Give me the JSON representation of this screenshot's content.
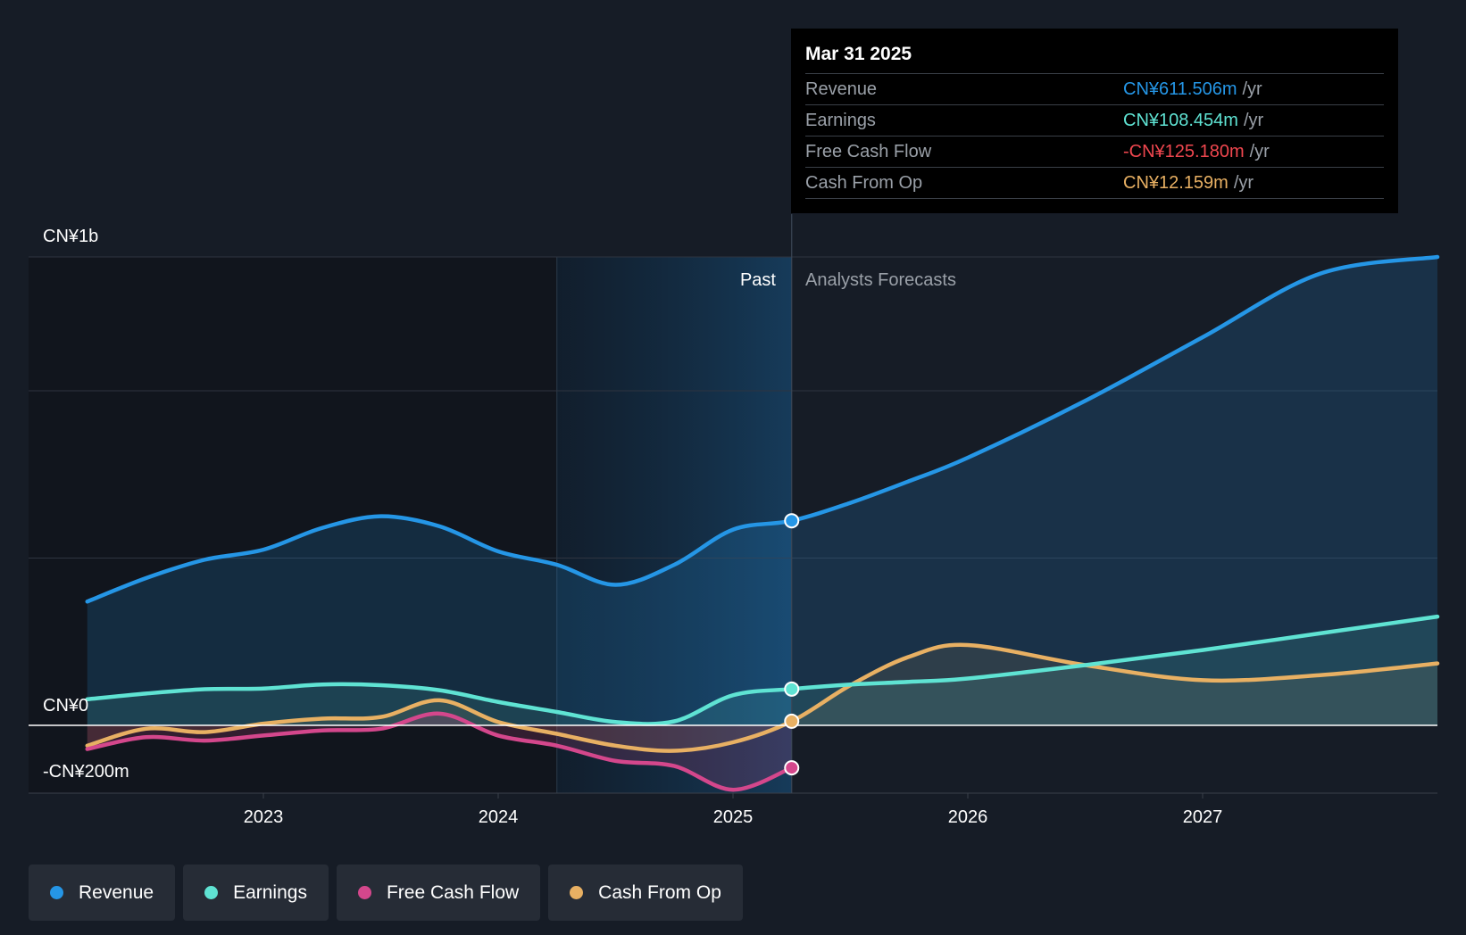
{
  "colors": {
    "revenue": "#2596e6",
    "earnings": "#5fe3d3",
    "free_cash_flow": "#d4478c",
    "cash_from_op": "#e8b063",
    "negative": "#f0474f"
  },
  "tooltip": {
    "date": "Mar 31 2025",
    "rows": [
      {
        "label": "Revenue",
        "value": "CN¥611.506m",
        "unit": "/yr"
      },
      {
        "label": "Earnings",
        "value": "CN¥108.454m",
        "unit": "/yr"
      },
      {
        "label": "Free Cash Flow",
        "value": "-CN¥125.180m",
        "unit": "/yr"
      },
      {
        "label": "Cash From Op",
        "value": "CN¥12.159m",
        "unit": "/yr"
      }
    ]
  },
  "legend": [
    {
      "label": "Revenue",
      "color_key": "revenue"
    },
    {
      "label": "Earnings",
      "color_key": "earnings"
    },
    {
      "label": "Free Cash Flow",
      "color_key": "free_cash_flow"
    },
    {
      "label": "Cash From Op",
      "color_key": "cash_from_op"
    }
  ],
  "chart_data": {
    "type": "line",
    "title": "",
    "xlabel": "",
    "ylabel": "",
    "xlim": [
      2022.0,
      2028.0
    ],
    "ylim": [
      -200,
      1400
    ],
    "y_tick_labels": [
      {
        "value": 1400,
        "label": "CN¥1b"
      },
      {
        "value": 0,
        "label": "CN¥0"
      },
      {
        "value": -200,
        "label": "-CN¥200m"
      }
    ],
    "x_ticks": [
      {
        "value": 2023,
        "label": "2023"
      },
      {
        "value": 2024,
        "label": "2024"
      },
      {
        "value": 2025,
        "label": "2025"
      },
      {
        "value": 2026,
        "label": "2026"
      },
      {
        "value": 2027,
        "label": "2027"
      }
    ],
    "past_label": "Past",
    "forecast_label": "Analysts Forecasts",
    "divider_x": 2025.25,
    "highlight_start_x": 2024.25,
    "series": [
      {
        "name": "Revenue",
        "key": "revenue",
        "points": [
          [
            2022.25,
            370
          ],
          [
            2022.5,
            440
          ],
          [
            2022.75,
            495
          ],
          [
            2023.0,
            525
          ],
          [
            2023.25,
            590
          ],
          [
            2023.5,
            625
          ],
          [
            2023.75,
            595
          ],
          [
            2024.0,
            520
          ],
          [
            2024.25,
            480
          ],
          [
            2024.5,
            420
          ],
          [
            2024.75,
            480
          ],
          [
            2025.0,
            585
          ],
          [
            2025.25,
            611.5
          ],
          [
            2025.5,
            665
          ],
          [
            2025.75,
            730
          ],
          [
            2026.0,
            800
          ],
          [
            2026.5,
            970
          ],
          [
            2027.0,
            1160
          ],
          [
            2027.5,
            1350
          ],
          [
            2028.0,
            1400
          ]
        ]
      },
      {
        "name": "Earnings",
        "key": "earnings",
        "points": [
          [
            2022.25,
            78
          ],
          [
            2022.5,
            95
          ],
          [
            2022.75,
            108
          ],
          [
            2023.0,
            110
          ],
          [
            2023.25,
            122
          ],
          [
            2023.5,
            120
          ],
          [
            2023.75,
            105
          ],
          [
            2024.0,
            70
          ],
          [
            2024.25,
            40
          ],
          [
            2024.5,
            10
          ],
          [
            2024.75,
            12
          ],
          [
            2025.0,
            90
          ],
          [
            2025.25,
            108.5
          ],
          [
            2025.5,
            122
          ],
          [
            2025.75,
            130
          ],
          [
            2026.0,
            140
          ],
          [
            2026.5,
            180
          ],
          [
            2027.0,
            225
          ],
          [
            2027.5,
            275
          ],
          [
            2028.0,
            325
          ]
        ]
      },
      {
        "name": "Free Cash Flow",
        "key": "free_cash_flow",
        "points": [
          [
            2022.25,
            -70
          ],
          [
            2022.5,
            -35
          ],
          [
            2022.75,
            -45
          ],
          [
            2023.0,
            -30
          ],
          [
            2023.25,
            -15
          ],
          [
            2023.5,
            -10
          ],
          [
            2023.75,
            35
          ],
          [
            2024.0,
            -30
          ],
          [
            2024.25,
            -60
          ],
          [
            2024.5,
            -105
          ],
          [
            2024.75,
            -120
          ],
          [
            2025.0,
            -190
          ],
          [
            2025.25,
            -125.2
          ]
        ]
      },
      {
        "name": "Cash From Op",
        "key": "cash_from_op",
        "points": [
          [
            2022.25,
            -60
          ],
          [
            2022.5,
            -10
          ],
          [
            2022.75,
            -20
          ],
          [
            2023.0,
            5
          ],
          [
            2023.25,
            20
          ],
          [
            2023.5,
            25
          ],
          [
            2023.75,
            75
          ],
          [
            2024.0,
            10
          ],
          [
            2024.25,
            -25
          ],
          [
            2024.5,
            -60
          ],
          [
            2024.75,
            -75
          ],
          [
            2025.0,
            -50
          ],
          [
            2025.25,
            12.2
          ],
          [
            2025.5,
            120
          ],
          [
            2025.75,
            205
          ],
          [
            2026.0,
            240
          ],
          [
            2026.5,
            180
          ],
          [
            2027.0,
            135
          ],
          [
            2027.5,
            150
          ],
          [
            2028.0,
            185
          ]
        ]
      }
    ]
  }
}
